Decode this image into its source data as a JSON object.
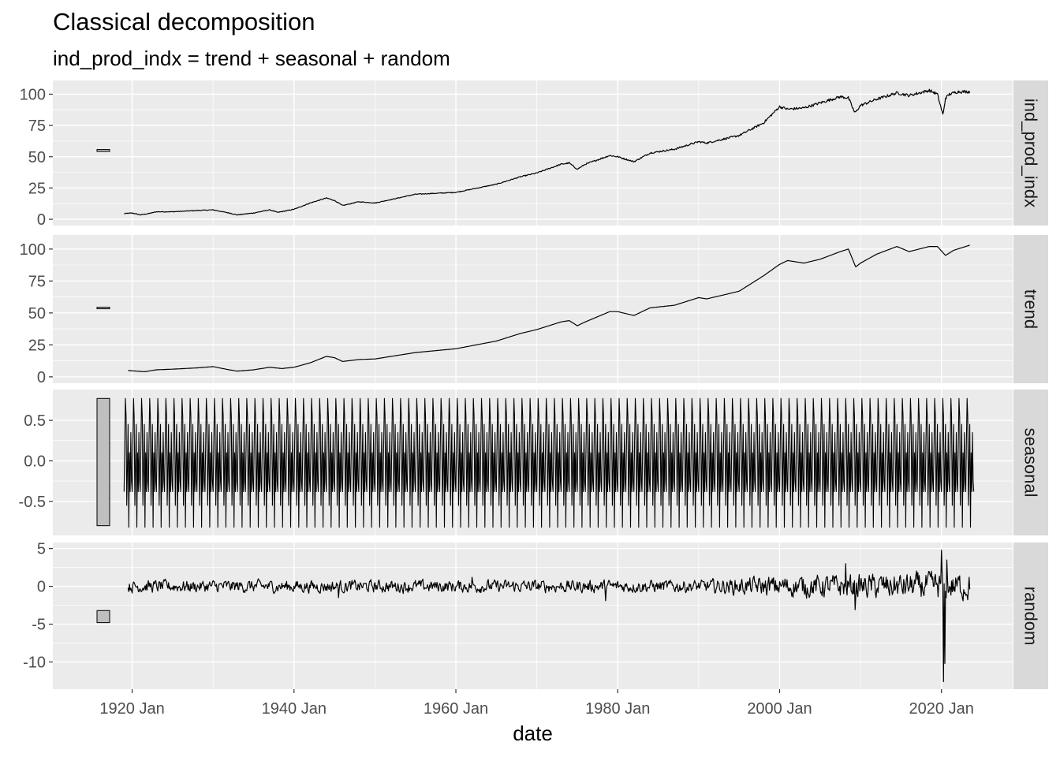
{
  "chart_data": {
    "type": "line",
    "title": "Classical decomposition",
    "subtitle": "ind_prod_indx = trend + seasonal + random",
    "xlabel": "date",
    "x_ticks": [
      "1920 Jan",
      "1940 Jan",
      "1960 Jan",
      "1980 Jan",
      "2000 Jan",
      "2020 Jan"
    ],
    "x_range": [
      1910.2,
      2028.8
    ],
    "grid": true,
    "panels": [
      {
        "name": "ind_prod_indx",
        "y_ticks": [
          "0",
          "25",
          "50",
          "75",
          "100"
        ],
        "y_tick_values": [
          0,
          25,
          50,
          75,
          100
        ],
        "ylim": [
          -5,
          111
        ],
        "scale_bar": [
          54.2,
          55.8
        ],
        "x": [
          1919.0,
          1920.0,
          1921.0,
          1922.0,
          1923.0,
          1925.0,
          1928.0,
          1930.0,
          1932.0,
          1933.0,
          1935.0,
          1937.0,
          1938.0,
          1940.0,
          1942.0,
          1944.0,
          1945.0,
          1946.0,
          1948.0,
          1950.0,
          1955.0,
          1960.0,
          1965.0,
          1968.0,
          1970.0,
          1973.0,
          1974.0,
          1975.0,
          1976.0,
          1979.0,
          1980.0,
          1982.0,
          1984.0,
          1987.0,
          1990.0,
          1991.0,
          1995.0,
          1998.0,
          2000.0,
          2001.0,
          2003.0,
          2005.0,
          2007.5,
          2008.5,
          2009.3,
          2010.0,
          2012.0,
          2014.5,
          2016.0,
          2018.5,
          2019.5,
          2020.2,
          2020.3,
          2020.5,
          2021.0,
          2022.0,
          2023.5
        ],
        "values": [
          4.5,
          5,
          3.5,
          4.5,
          6,
          6,
          7,
          7.5,
          5,
          3.5,
          5,
          7.5,
          5.5,
          8,
          13,
          17,
          15,
          11,
          14,
          13,
          20,
          21.5,
          28,
          34,
          37,
          44,
          45,
          40,
          44,
          51,
          50,
          46,
          53,
          56,
          62,
          61,
          67,
          77,
          90,
          88,
          89,
          93,
          98,
          97,
          85,
          91,
          96,
          101,
          99,
          103,
          100,
          83,
          88,
          97,
          100,
          102,
          102
        ],
        "noise": 1.4
      },
      {
        "name": "trend",
        "y_ticks": [
          "0",
          "25",
          "50",
          "75",
          "100"
        ],
        "y_tick_values": [
          0,
          25,
          50,
          75,
          100
        ],
        "ylim": [
          -5,
          111
        ],
        "scale_bar": [
          53.3,
          54.5
        ],
        "x": [
          1919.5,
          1920.5,
          1921.5,
          1923.0,
          1925.0,
          1928.0,
          1930.0,
          1932.0,
          1933.0,
          1935.0,
          1937.0,
          1938.5,
          1940.0,
          1942.0,
          1944.0,
          1945.0,
          1946.0,
          1948.0,
          1950.0,
          1955.0,
          1960.0,
          1965.0,
          1968.0,
          1970.0,
          1973.0,
          1974.0,
          1975.0,
          1976.0,
          1979.0,
          1980.0,
          1982.0,
          1984.0,
          1987.0,
          1990.0,
          1991.0,
          1995.0,
          1998.0,
          2000.0,
          2001.0,
          2003.0,
          2005.0,
          2007.5,
          2008.5,
          2009.4,
          2010.0,
          2012.0,
          2014.5,
          2016.0,
          2018.5,
          2019.5,
          2020.5,
          2021.5,
          2023.5
        ],
        "values": [
          5,
          4.5,
          4,
          5.5,
          6,
          7,
          8,
          5.5,
          4.5,
          5.5,
          7.5,
          6.5,
          7.5,
          11,
          16,
          15,
          12,
          13.5,
          14,
          19,
          22,
          28,
          34,
          37,
          43,
          44,
          40,
          43,
          51,
          51,
          48,
          54,
          56,
          62,
          61,
          67,
          79,
          88,
          91,
          89,
          92,
          98,
          100,
          86,
          89,
          96,
          102,
          98,
          102,
          102,
          95,
          99,
          103
        ],
        "noise": 0
      },
      {
        "name": "seasonal",
        "y_ticks": [
          "-0.5",
          "0.0",
          "0.5"
        ],
        "y_tick_values": [
          -0.5,
          0,
          0.5
        ],
        "ylim": [
          -0.92,
          0.88
        ],
        "scale_bar": [
          -0.8,
          0.77
        ],
        "x_start": 1919.0,
        "x_end": 2024.0,
        "period_pattern": [
          -0.38,
          0.22,
          0.77,
          0.55,
          -0.55,
          -0.05,
          0.45,
          -0.82,
          0.1,
          -0.38,
          0.35,
          -0.25
        ]
      },
      {
        "name": "random",
        "y_ticks": [
          "-10",
          "-5",
          "0",
          "5"
        ],
        "y_tick_values": [
          -10,
          -5,
          0,
          5
        ],
        "ylim": [
          -13.6,
          5.8
        ],
        "scale_bar": [
          -4.8,
          -3.2
        ],
        "x_start": 1919.5,
        "x_end": 2023.5,
        "noise_envelope": {
          "x": [
            1919.5,
            1990,
            2000,
            2019.5,
            2023.5
          ],
          "amplitude": [
            0.9,
            0.9,
            1.5,
            2.0,
            2.0
          ]
        },
        "spikes": [
          [
            2009.3,
            -3.1
          ],
          [
            2008.2,
            3.0
          ],
          [
            2020.0,
            4.8
          ],
          [
            2020.25,
            -12.6
          ],
          [
            2020.45,
            -10.2
          ],
          [
            2020.7,
            3.5
          ],
          [
            1945.5,
            -1.5
          ],
          [
            1962.0,
            1.2
          ],
          [
            1978.5,
            -1.9
          ]
        ]
      }
    ]
  }
}
